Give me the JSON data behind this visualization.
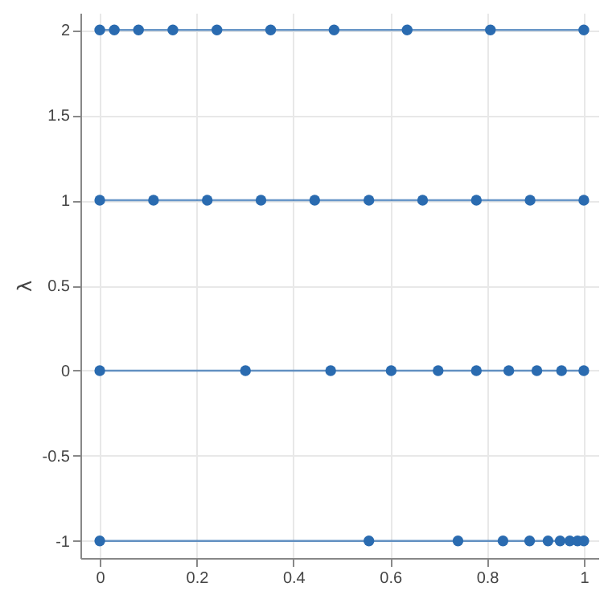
{
  "chart_data": {
    "type": "line",
    "ylabel": "λ",
    "xlim": [
      -0.04,
      1.03
    ],
    "ylim": [
      -1.1,
      2.1
    ],
    "xticks": [
      0,
      0.2,
      0.4,
      0.6,
      0.8,
      1
    ],
    "yticks": [
      -1,
      -0.5,
      0,
      0.5,
      1,
      1.5,
      2
    ],
    "grid": true,
    "marker": "circle",
    "legend": false,
    "series": [
      {
        "color": "#2a6bb0",
        "x": [
          0,
          0.03,
          0.08,
          0.151,
          0.242,
          0.353,
          0.484,
          0.635,
          0.807,
          1
        ],
        "values": [
          2,
          2,
          2,
          2,
          2,
          2,
          2,
          2,
          2,
          2
        ]
      },
      {
        "color": "#2a6bb0",
        "x": [
          0,
          0.111,
          0.222,
          0.333,
          0.444,
          0.556,
          0.667,
          0.778,
          0.889,
          1
        ],
        "values": [
          1,
          1,
          1,
          1,
          1,
          1,
          1,
          1,
          1,
          1
        ]
      },
      {
        "color": "#2a6bb0",
        "x": [
          0,
          0.301,
          0.477,
          0.602,
          0.699,
          0.778,
          0.845,
          0.903,
          0.954,
          1
        ],
        "values": [
          0,
          0,
          0,
          0,
          0,
          0,
          0,
          0,
          0,
          0
        ]
      },
      {
        "color": "#2a6bb0",
        "x": [
          0,
          0.556,
          0.74,
          0.833,
          0.888,
          0.926,
          0.951,
          0.971,
          0.987,
          1
        ],
        "values": [
          -1,
          -1,
          -1,
          -1,
          -1,
          -1,
          -1,
          -1,
          -1,
          -1
        ]
      }
    ]
  }
}
